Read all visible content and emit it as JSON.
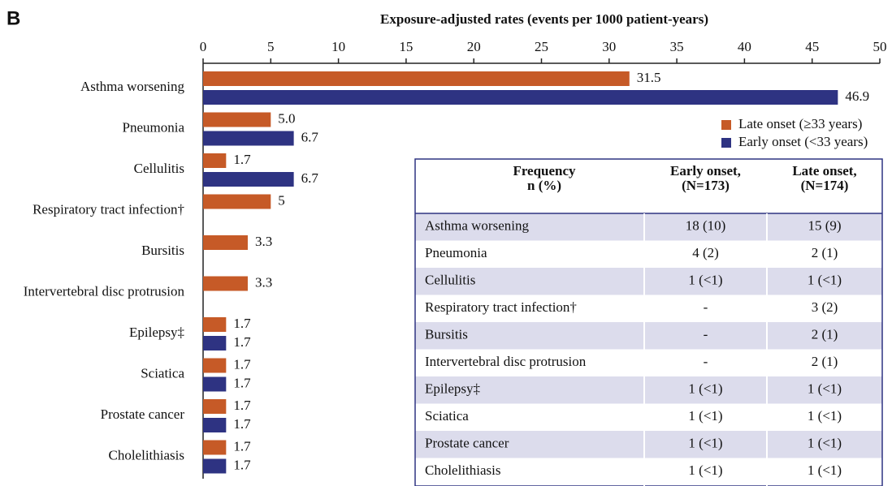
{
  "panel_label": "B",
  "chart_data": {
    "type": "hbar",
    "xlabel": "Exposure-adjusted rates (events per 1000 patient-years)",
    "categories": [
      "Asthma worsening",
      "Pneumonia",
      "Cellulitis",
      "Respiratory tract infection†",
      "Bursitis",
      "Intervertebral disc protrusion",
      "Epilepsy‡",
      "Sciatica",
      "Prostate cancer",
      "Cholelithiasis"
    ],
    "series": [
      {
        "name": "Late onset (≥33 years)",
        "color": "#c65a27",
        "values": [
          31.5,
          5.0,
          1.7,
          5,
          3.3,
          3.3,
          1.7,
          1.7,
          1.7,
          1.7
        ],
        "value_labels": [
          "31.5",
          "5.0",
          "1.7",
          "5",
          "3.3",
          "3.3",
          "1.7",
          "1.7",
          "1.7",
          "1.7"
        ]
      },
      {
        "name": "Early onset (<33 years)",
        "color": "#2e3382",
        "values": [
          46.9,
          6.7,
          6.7,
          null,
          null,
          null,
          1.7,
          1.7,
          1.7,
          1.7
        ],
        "value_labels": [
          "46.9",
          "6.7",
          "6.7",
          null,
          null,
          null,
          "1.7",
          "1.7",
          "1.7",
          "1.7"
        ]
      }
    ],
    "xlim": [
      0,
      50
    ],
    "xticks": [
      0,
      5,
      10,
      15,
      20,
      25,
      30,
      35,
      40,
      45,
      50
    ],
    "legend": "upper right"
  },
  "table": {
    "header": [
      [
        "Frequency",
        "n (%)"
      ],
      [
        "Early onset,",
        "(N=173)"
      ],
      [
        "Late onset,",
        "(N=174)"
      ]
    ],
    "rows": [
      [
        "Asthma worsening",
        "18 (10)",
        "15 (9)"
      ],
      [
        "Pneumonia",
        "4 (2)",
        "2 (1)"
      ],
      [
        "Cellulitis",
        "1 (<1)",
        "1 (<1)"
      ],
      [
        "Respiratory tract infection†",
        "-",
        "3 (2)"
      ],
      [
        "Bursitis",
        "-",
        "2 (1)"
      ],
      [
        "Intervertebral disc protrusion",
        "-",
        "2 (1)"
      ],
      [
        "Epilepsy‡",
        "1 (<1)",
        "1 (<1)"
      ],
      [
        "Sciatica",
        "1 (<1)",
        "1 (<1)"
      ],
      [
        "Prostate cancer",
        "1 (<1)",
        "1 (<1)"
      ],
      [
        "Cholelithiasis",
        "1 (<1)",
        "1 (<1)"
      ]
    ]
  }
}
